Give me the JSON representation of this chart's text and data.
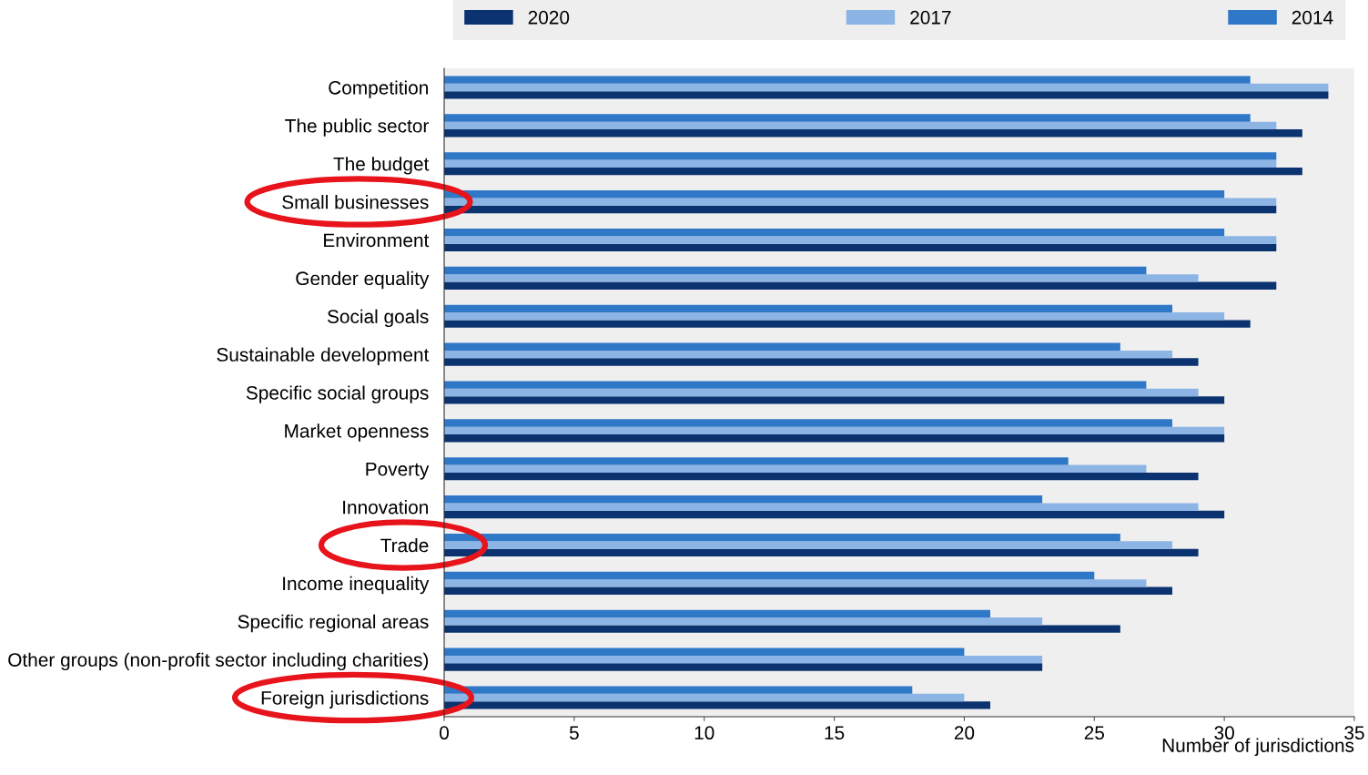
{
  "chart_data": {
    "type": "bar",
    "orientation": "horizontal",
    "categories": [
      "Competition",
      "The public sector",
      "The budget",
      "Small businesses",
      "Environment",
      "Gender equality",
      "Social goals",
      "Sustainable development",
      "Specific social groups",
      "Market openness",
      "Poverty",
      "Innovation",
      "Trade",
      "Income inequality",
      "Specific regional areas",
      "Other groups (non-profit sector including charities)",
      "Foreign jurisdictions"
    ],
    "series": [
      {
        "name": "2020",
        "color": "#0b3370",
        "values": [
          34,
          33,
          33,
          32,
          32,
          32,
          31,
          29,
          30,
          30,
          29,
          30,
          29,
          28,
          26,
          23,
          21
        ]
      },
      {
        "name": "2017",
        "color": "#8cb4e4",
        "values": [
          34,
          32,
          32,
          32,
          32,
          29,
          30,
          28,
          29,
          30,
          27,
          29,
          28,
          27,
          23,
          23,
          20
        ]
      },
      {
        "name": "2014",
        "color": "#2f78c8",
        "values": [
          31,
          31,
          32,
          30,
          30,
          27,
          28,
          26,
          27,
          28,
          24,
          23,
          26,
          25,
          21,
          20,
          18
        ]
      }
    ],
    "xlabel": "Number of jurisdictions",
    "xlim": [
      0,
      35
    ],
    "xticks": [
      0,
      5,
      10,
      15,
      20,
      25,
      30,
      35
    ],
    "legend": "top",
    "grid": false
  }
}
